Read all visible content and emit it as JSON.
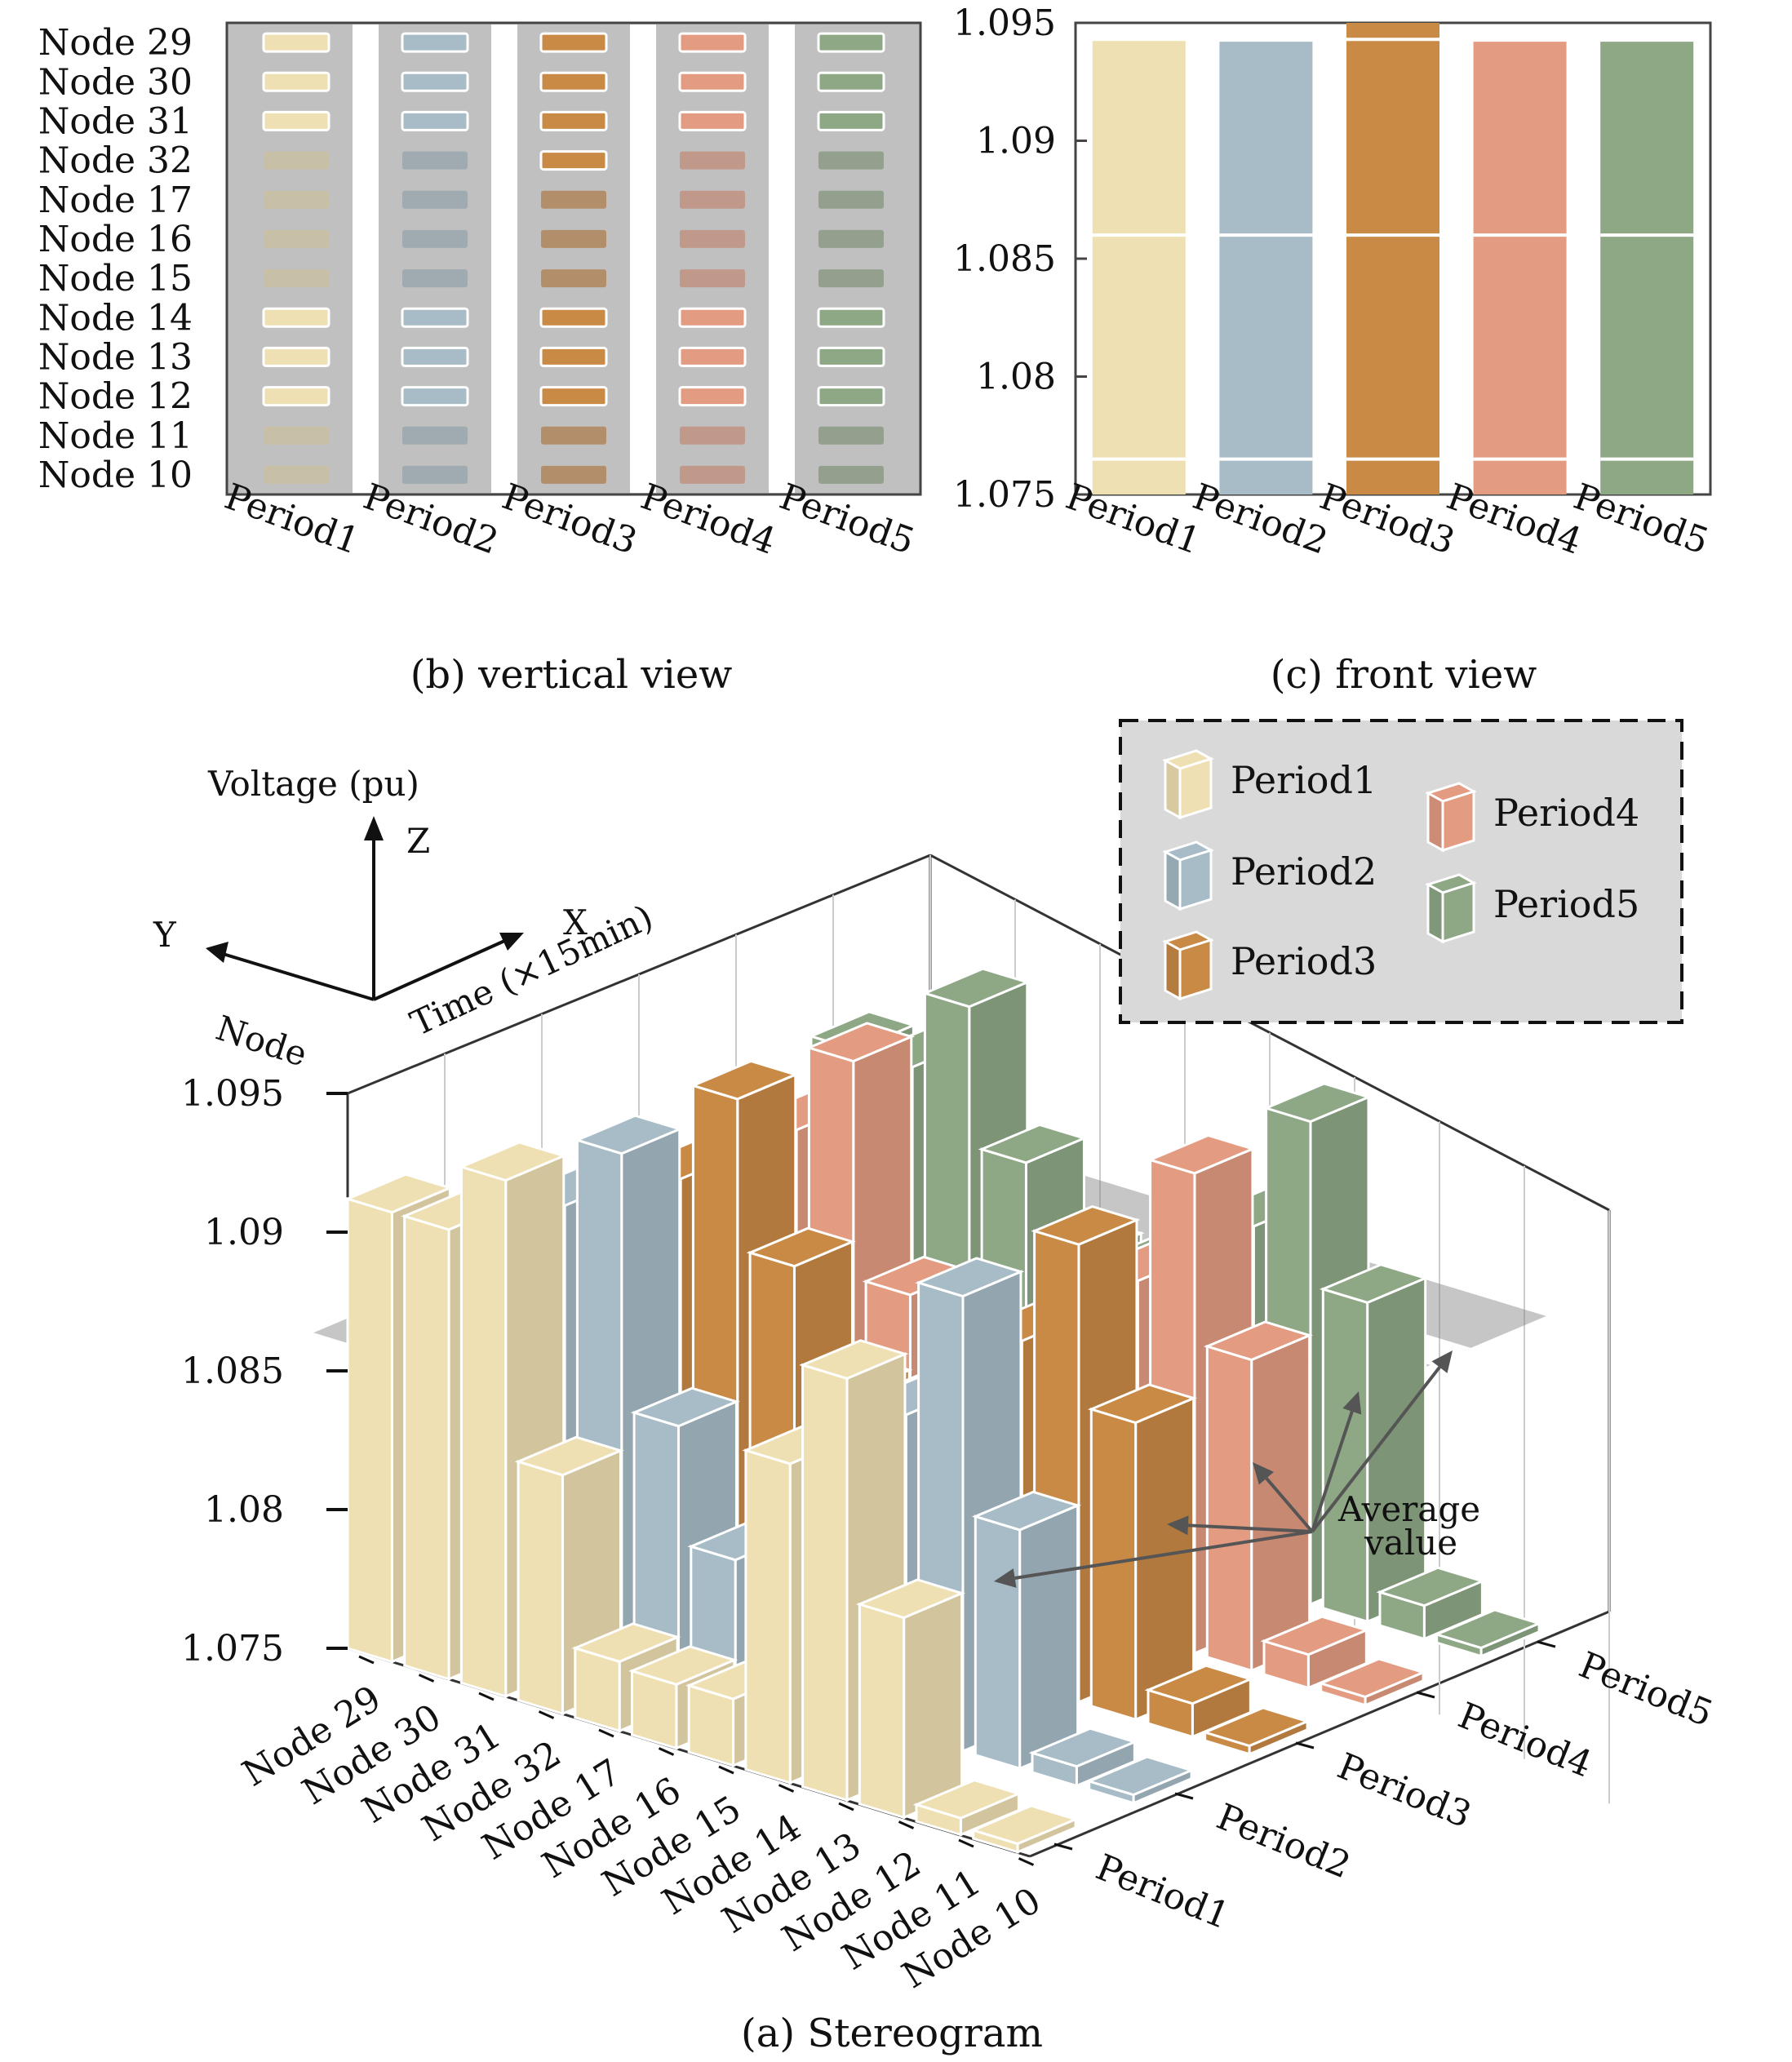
{
  "figure": {
    "caption_b": "(b) vertical view",
    "caption_c": "(c) front view",
    "caption_a": "(a) Stereogram"
  },
  "colors": {
    "Period1": "#efe0b3",
    "Period2": "#a7bcc6",
    "Period3": "#c98a46",
    "Period4": "#e39c82",
    "Period5": "#8ea886",
    "background_b": "#c0c0c0",
    "plane": "#808080"
  },
  "chart_data": [
    {
      "id": "vertical-view",
      "type": "heatmap",
      "title": "(b) vertical view",
      "x": [
        "Period1",
        "Period2",
        "Period3",
        "Period4",
        "Period5"
      ],
      "y": [
        "Node 29",
        "Node 30",
        "Node 31",
        "Node 32",
        "Node 17",
        "Node 16",
        "Node 15",
        "Node 14",
        "Node 13",
        "Node 12",
        "Node 11",
        "Node 10"
      ],
      "above_average": [
        [
          1,
          1,
          1,
          1,
          1
        ],
        [
          1,
          1,
          1,
          1,
          1
        ],
        [
          1,
          1,
          1,
          1,
          1
        ],
        [
          0,
          0,
          1,
          0,
          0
        ],
        [
          0,
          0,
          0,
          0,
          0
        ],
        [
          0,
          0,
          0,
          0,
          0
        ],
        [
          0,
          0,
          0,
          0,
          0
        ],
        [
          1,
          1,
          1,
          1,
          1
        ],
        [
          1,
          1,
          1,
          1,
          1
        ],
        [
          1,
          1,
          1,
          1,
          1
        ],
        [
          0,
          0,
          0,
          0,
          0
        ],
        [
          0,
          0,
          0,
          0,
          0
        ]
      ]
    },
    {
      "id": "front-view",
      "type": "bar",
      "title": "(c) front view",
      "categories": [
        "Period1",
        "Period2",
        "Period3",
        "Period4",
        "Period5"
      ],
      "bar_top": [
        1.0943,
        1.0942,
        1.095,
        1.0942,
        1.0942
      ],
      "ylim": [
        1.075,
        1.095
      ],
      "yticks": [
        "1.075",
        "1.08",
        "1.085",
        "1.09",
        "1.095"
      ],
      "lines": [
        1.0765,
        1.086,
        1.0943
      ]
    },
    {
      "id": "stereogram",
      "type": "bar",
      "title": "(a) Stereogram",
      "zlabel": "Voltage (pu)",
      "xlabel": "Time (×15min)",
      "ylabel": "Node",
      "axis_letters": {
        "z": "Z",
        "x": "X",
        "y": "Y"
      },
      "zlim": [
        1.075,
        1.095
      ],
      "zticks": [
        "1.075",
        "1.08",
        "1.085",
        "1.09",
        "1.095"
      ],
      "categories": [
        "Node 29",
        "Node 30",
        "Node 31",
        "Node 32",
        "Node 17",
        "Node 16",
        "Node 15",
        "Node 14",
        "Node 13",
        "Node 12",
        "Node 11",
        "Node 10"
      ],
      "periods": [
        "Period1",
        "Period2",
        "Period3",
        "Period4",
        "Period5"
      ],
      "series": [
        {
          "name": "Period1",
          "values": [
            1.0912,
            1.0912,
            1.0936,
            1.0836,
            1.0775,
            1.0773,
            1.0774,
            1.0865,
            1.0902,
            1.0822,
            1.0756,
            1.075
          ]
        },
        {
          "name": "Period2",
          "values": [
            1.0903,
            1.0903,
            1.0928,
            1.0836,
            1.0794,
            1.0794,
            1.0794,
            1.0865,
            1.0914,
            1.0836,
            1.0757,
            1.075
          ]
        },
        {
          "name": "Period3",
          "values": [
            1.0895,
            1.0895,
            1.093,
            1.0876,
            1.0836,
            1.0836,
            1.0836,
            1.0874,
            1.0915,
            1.0857,
            1.0762,
            1.075
          ]
        },
        {
          "name": "Period4",
          "values": [
            1.0895,
            1.0895,
            1.0926,
            1.0848,
            1.0836,
            1.0836,
            1.0836,
            1.0878,
            1.0923,
            1.0862,
            1.0762,
            1.075
          ]
        },
        {
          "name": "Period5",
          "values": [
            1.09,
            1.09,
            1.0928,
            1.0878,
            1.085,
            1.085,
            1.085,
            1.088,
            1.0924,
            1.0865,
            1.0762,
            1.075
          ]
        }
      ],
      "average_plane": 1.086,
      "annotation": [
        "Average",
        "value"
      ]
    }
  ],
  "legend": {
    "items": [
      "Period1",
      "Period2",
      "Period3",
      "Period4",
      "Period5"
    ]
  }
}
